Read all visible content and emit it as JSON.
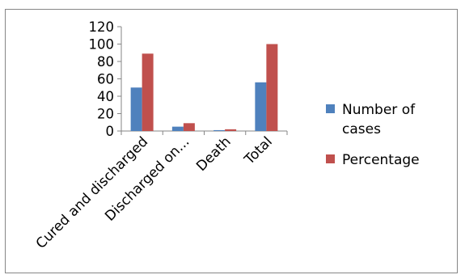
{
  "chart_data": {
    "type": "bar",
    "title": "",
    "xlabel": "",
    "ylabel": "",
    "categories": [
      "Cured and discharged",
      "Discharged on...",
      "Death",
      "Total"
    ],
    "series": [
      {
        "name": "Number of cases",
        "color": "#4f81bd",
        "values": [
          50,
          5,
          1,
          56
        ]
      },
      {
        "name": "Percentage",
        "color": "#c0504d",
        "values": [
          89,
          9,
          2,
          100
        ]
      }
    ],
    "ylim": [
      0,
      120
    ],
    "yticks": [
      "0",
      "20",
      "40",
      "60",
      "80",
      "100",
      "120"
    ],
    "grid": false,
    "legend": {
      "position": "right",
      "entries": [
        {
          "lines": [
            "Number of",
            "cases"
          ]
        },
        {
          "lines": [
            "Percentage"
          ]
        }
      ]
    }
  }
}
